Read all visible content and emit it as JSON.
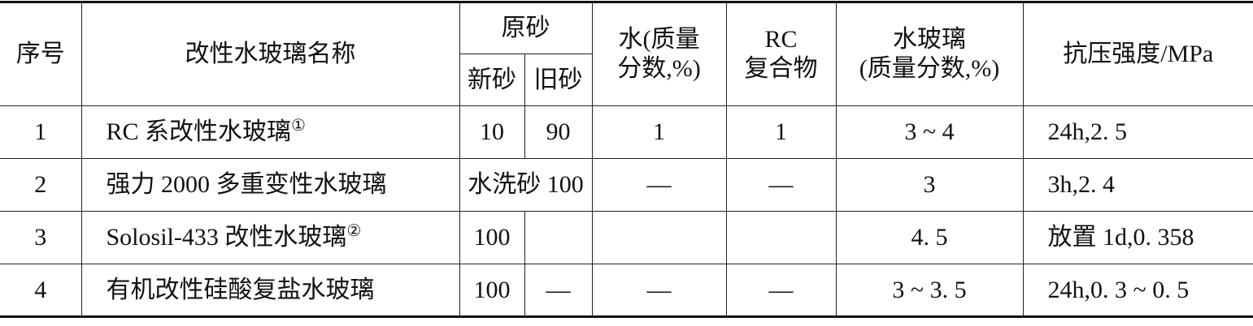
{
  "headers": {
    "no": "序号",
    "name": "改性水玻璃名称",
    "sand": "原砂",
    "new_sand": "新砂",
    "old_sand": "旧砂",
    "water_l1": "水(质量",
    "water_l2": "分数,%)",
    "rc_l1": "RC",
    "rc_l2": "复合物",
    "wg_l1": "水玻璃",
    "wg_l2": "(质量分数,%)",
    "strength": "抗压强度/MPa"
  },
  "rows": [
    {
      "no": "1",
      "name": "RC 系改性水玻璃",
      "note": "①",
      "new_sand": "10",
      "old_sand": "90",
      "water": "1",
      "rc": "1",
      "water_glass": "3 ~ 4",
      "strength": "24h,2. 5"
    },
    {
      "no": "2",
      "name": "强力 2000 多重变性水玻璃",
      "note": "",
      "sand_merged": "水洗砂 100",
      "water": "—",
      "rc": "—",
      "water_glass": "3",
      "strength": "3h,2. 4"
    },
    {
      "no": "3",
      "name": "Solosil-433 改性水玻璃",
      "note": "②",
      "new_sand": "100",
      "old_sand": "",
      "water": "",
      "rc": "",
      "water_glass": "4. 5",
      "strength": "放置 1d,0. 358"
    },
    {
      "no": "4",
      "name": "有机改性硅酸复盐水玻璃",
      "note": "",
      "new_sand": "100",
      "old_sand": "—",
      "water": "—",
      "rc": "—",
      "water_glass": "3 ~ 3. 5",
      "strength": "24h,0. 3 ~ 0. 5"
    }
  ]
}
